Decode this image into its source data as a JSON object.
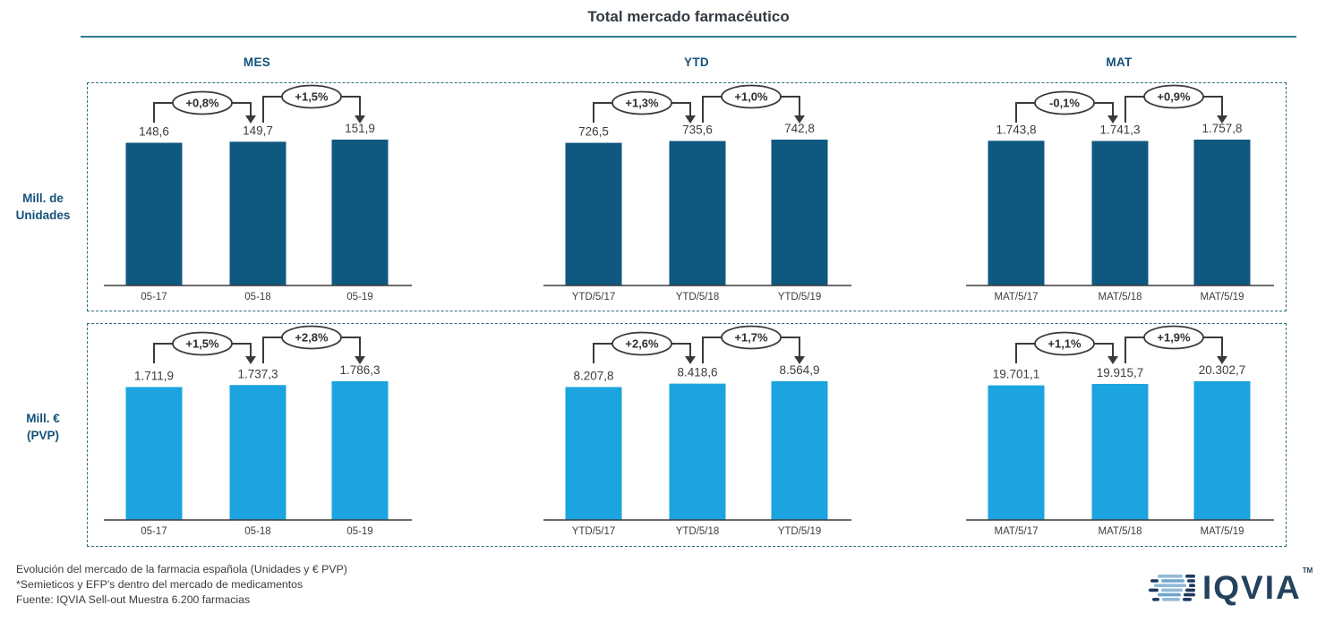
{
  "title": "Total mercado farmacéutico",
  "chart_data": {
    "type": "bar",
    "title": "Total mercado farmacéutico",
    "column_headers": [
      "MES",
      "YTD",
      "MAT"
    ],
    "legend_position": "none",
    "grid": false,
    "rows": [
      {
        "row_label": "Mill. de Unidades",
        "label_lines": [
          "Mill. de",
          "Unidades"
        ],
        "bar_color": "#0f5880",
        "groups": [
          {
            "column": "MES",
            "categories": [
              "05-17",
              "05-18",
              "05-19"
            ],
            "values": [
              148.6,
              149.7,
              151.9
            ],
            "value_labels": [
              "148,6",
              "149,7",
              "151,9"
            ],
            "changes": [
              "+0,8%",
              "+1,5%"
            ]
          },
          {
            "column": "YTD",
            "categories": [
              "YTD/5/17",
              "YTD/5/18",
              "YTD/5/19"
            ],
            "values": [
              726.5,
              735.6,
              742.8
            ],
            "value_labels": [
              "726,5",
              "735,6",
              "742,8"
            ],
            "changes": [
              "+1,3%",
              "+1,0%"
            ]
          },
          {
            "column": "MAT",
            "categories": [
              "MAT/5/17",
              "MAT/5/18",
              "MAT/5/19"
            ],
            "values": [
              1743.8,
              1741.3,
              1757.8
            ],
            "value_labels": [
              "1.743,8",
              "1.741,3",
              "1.757,8"
            ],
            "changes": [
              "-0,1%",
              "+0,9%"
            ]
          }
        ]
      },
      {
        "row_label": "Mill. € (PVP)",
        "label_lines": [
          "Mill. €",
          "(PVP)"
        ],
        "bar_color": "#1ba4df",
        "groups": [
          {
            "column": "MES",
            "categories": [
              "05-17",
              "05-18",
              "05-19"
            ],
            "values": [
              1711.9,
              1737.3,
              1786.3
            ],
            "value_labels": [
              "1.711,9",
              "1.737,3",
              "1.786,3"
            ],
            "changes": [
              "+1,5%",
              "+2,8%"
            ]
          },
          {
            "column": "YTD",
            "categories": [
              "YTD/5/17",
              "YTD/5/18",
              "YTD/5/19"
            ],
            "values": [
              8207.8,
              8418.6,
              8564.9
            ],
            "value_labels": [
              "8.207,8",
              "8.418,6",
              "8.564,9"
            ],
            "changes": [
              "+2,6%",
              "+1,7%"
            ]
          },
          {
            "column": "MAT",
            "categories": [
              "MAT/5/17",
              "MAT/5/18",
              "MAT/5/19"
            ],
            "values": [
              19701.1,
              19915.7,
              20302.7
            ],
            "value_labels": [
              "19.701,1",
              "19.915,7",
              "20.302,7"
            ],
            "changes": [
              "+1,1%",
              "+1,9%"
            ]
          }
        ]
      }
    ]
  },
  "footer_lines": [
    "Evolución del mercado de la farmacia española (Unidades y € PVP)",
    "*Semieticos y EFP's dentro del mercado de medicamentos",
    "Fuente: IQVIA Sell-out Muestra 6.200 farmacias"
  ],
  "logo": {
    "wordmark": "IQVIA",
    "tm": "TM"
  },
  "colors": {
    "dark_bar": "#0f5880",
    "light_bar": "#1ba4df",
    "header_text": "#14527a",
    "title_rule": "#2e7f91",
    "dashed_border": "#2d6b7d",
    "annotation_line": "#3a3a3a",
    "text": "#3b3b3b",
    "logo_navy": "#24415e",
    "logo_light_blue": "#8fbbd8"
  }
}
